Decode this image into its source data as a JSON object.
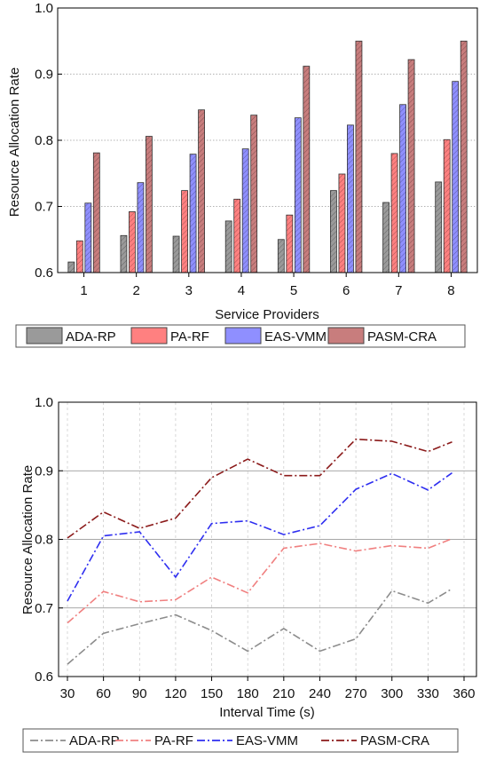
{
  "chart_data": [
    {
      "type": "bar",
      "title": "",
      "xlabel": "Service Providers",
      "ylabel": "Resource Allocation Rate",
      "categories": [
        "1",
        "2",
        "3",
        "4",
        "5",
        "6",
        "7",
        "8"
      ],
      "ylim": [
        0.6,
        1.0
      ],
      "yticks": [
        "0.6",
        "0.7",
        "0.8",
        "0.9",
        "1.0"
      ],
      "grid": true,
      "legend_position": "bottom",
      "series": [
        {
          "name": "ADA-RP",
          "color": "#9a9a9a",
          "values": [
            0.616,
            0.656,
            0.655,
            0.678,
            0.65,
            0.724,
            0.706,
            0.737
          ]
        },
        {
          "name": "PA-RF",
          "color": "#ff8080",
          "values": [
            0.648,
            0.692,
            0.724,
            0.711,
            0.687,
            0.749,
            0.78,
            0.801
          ]
        },
        {
          "name": "EAS-VMM",
          "color": "#8f8fff",
          "values": [
            0.705,
            0.736,
            0.779,
            0.787,
            0.834,
            0.823,
            0.854,
            0.889
          ]
        },
        {
          "name": "PASM-CRA",
          "color": "#c87d7d",
          "values": [
            0.781,
            0.806,
            0.846,
            0.838,
            0.912,
            0.95,
            0.922,
            0.95
          ]
        }
      ]
    },
    {
      "type": "line",
      "title": "",
      "xlabel": "Interval Time (s)",
      "ylabel": "Resource Allocation Rate",
      "x": [
        30,
        60,
        90,
        120,
        150,
        180,
        210,
        240,
        270,
        300,
        330,
        350
      ],
      "xticks": [
        "30",
        "60",
        "90",
        "120",
        "150",
        "180",
        "210",
        "240",
        "270",
        "300",
        "330",
        "360"
      ],
      "xlim": [
        30,
        360
      ],
      "ylim": [
        0.6,
        1.0
      ],
      "yticks": [
        "0.6",
        "0.7",
        "0.8",
        "0.9",
        "1.0"
      ],
      "grid": true,
      "legend_position": "bottom",
      "series": [
        {
          "name": "ADA-RP",
          "color": "#8c8c8c",
          "values": [
            0.618,
            0.663,
            0.677,
            0.69,
            0.667,
            0.637,
            0.67,
            0.637,
            0.655,
            0.725,
            0.707,
            0.728
          ]
        },
        {
          "name": "PA-RF",
          "color": "#f08080",
          "values": [
            0.678,
            0.724,
            0.709,
            0.712,
            0.745,
            0.722,
            0.787,
            0.794,
            0.783,
            0.791,
            0.787,
            0.801
          ]
        },
        {
          "name": "EAS-VMM",
          "color": "#2e2ef0",
          "values": [
            0.71,
            0.805,
            0.811,
            0.745,
            0.823,
            0.827,
            0.807,
            0.82,
            0.873,
            0.896,
            0.872,
            0.897
          ]
        },
        {
          "name": "PASM-CRA",
          "color": "#8b1a1a",
          "values": [
            0.802,
            0.84,
            0.816,
            0.831,
            0.89,
            0.917,
            0.893,
            0.893,
            0.946,
            0.943,
            0.928,
            0.942
          ]
        }
      ]
    }
  ]
}
